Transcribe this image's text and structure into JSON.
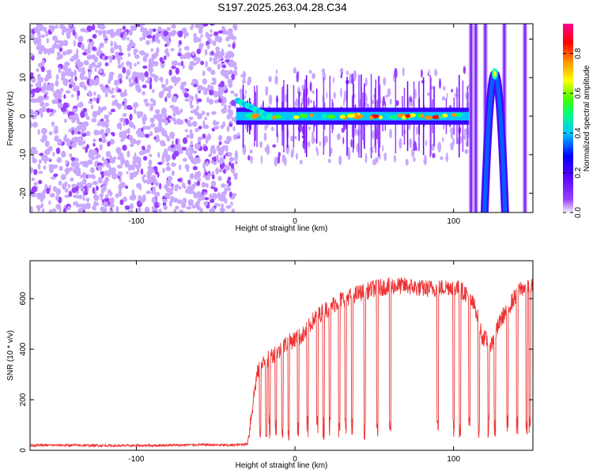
{
  "title": "S197.2025.263.04.28.C34",
  "chart_data": [
    {
      "type": "heatmap",
      "xlabel": "Height of straight line (km)",
      "ylabel": "Frequency (Hz)",
      "xlim": [
        -167,
        150
      ],
      "ylim": [
        -25,
        24
      ],
      "xticks": [
        -100,
        0,
        100
      ],
      "yticks": [
        -20,
        -10,
        0,
        10,
        20
      ],
      "colorbar": {
        "label": "Normalized spectral amplitude",
        "range": [
          0,
          0.95
        ],
        "ticks": [
          "0.0",
          "0.2",
          "0.4",
          "0.6",
          "0.8"
        ],
        "colormap": [
          "#f4f0fc",
          "#8000ff",
          "#0000ff",
          "#00ffff",
          "#00ff00",
          "#ffff00",
          "#ff7f00",
          "#ff0000",
          "#ff0080"
        ]
      },
      "regions": [
        {
          "name": "scattered noise",
          "x": [
            -167,
            -37
          ],
          "y": [
            -25,
            24
          ]
        },
        {
          "name": "horizontal band",
          "x": [
            -37,
            110
          ],
          "y_center": 0,
          "amplitude_peak": 0.95
        },
        {
          "name": "arch",
          "x_peak": 126,
          "y_peak": 11,
          "x": [
            113,
            140
          ]
        },
        {
          "name": "vertical lines",
          "x": [
            111,
            114,
            120,
            132,
            145
          ]
        }
      ]
    },
    {
      "type": "line",
      "xlabel": "Height of straight line (km)",
      "ylabel": "SNR (10 * v/v)",
      "xlim": [
        -167,
        150
      ],
      "ylim": [
        0,
        750
      ],
      "xticks": [
        -100,
        0,
        100
      ],
      "yticks": [
        0,
        200,
        400,
        600
      ],
      "series": [
        {
          "color": "#ee3333",
          "x": [
            -167,
            -140,
            -110,
            -80,
            -60,
            -40,
            -30,
            -24,
            -20,
            -14,
            -10,
            -6,
            0,
            6,
            12,
            20,
            30,
            40,
            50,
            60,
            70,
            80,
            90,
            100,
            108,
            114,
            118,
            124,
            130,
            136,
            142,
            150
          ],
          "y": [
            20,
            20,
            18,
            20,
            22,
            20,
            25,
            300,
            340,
            380,
            390,
            420,
            440,
            460,
            520,
            560,
            600,
            620,
            640,
            650,
            650,
            640,
            640,
            650,
            620,
            560,
            450,
            420,
            520,
            580,
            640,
            650
          ]
        }
      ],
      "dropouts_x": [
        -22,
        -18,
        -16,
        -12,
        -8,
        -4,
        2,
        8,
        14,
        18,
        22,
        28,
        32,
        36,
        44,
        52,
        60,
        90,
        100,
        104,
        110,
        116,
        122,
        126,
        134,
        140,
        146,
        148
      ],
      "dropout_floor": 100
    }
  ]
}
